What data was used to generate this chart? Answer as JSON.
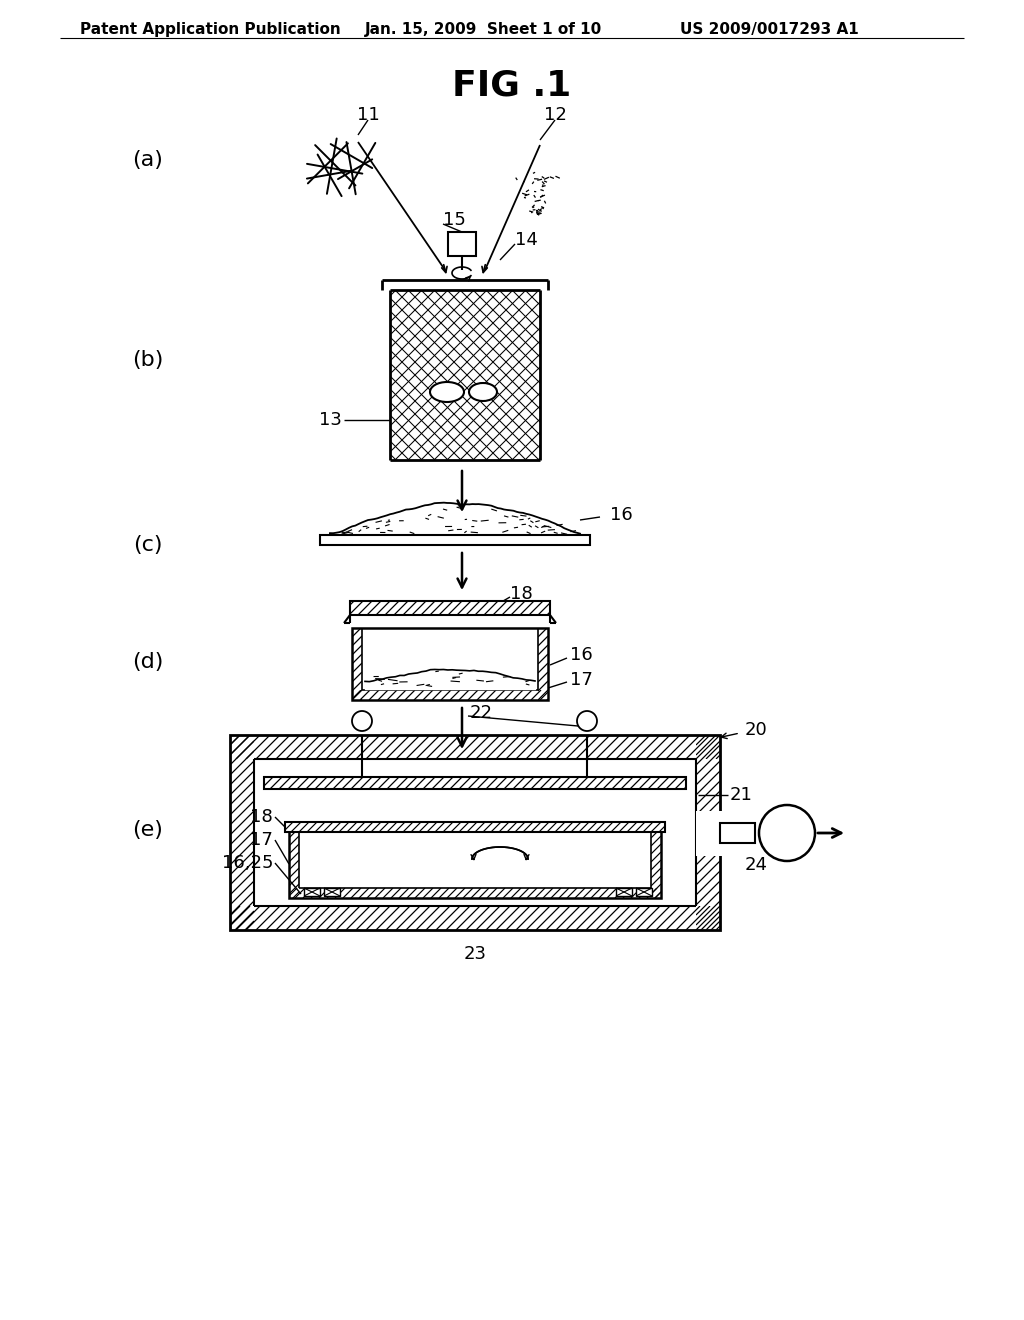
{
  "header_left": "Patent Application Publication",
  "header_mid": "Jan. 15, 2009  Sheet 1 of 10",
  "header_right": "US 2009/0017293 A1",
  "title": "FIG .1",
  "bg_color": "#ffffff"
}
